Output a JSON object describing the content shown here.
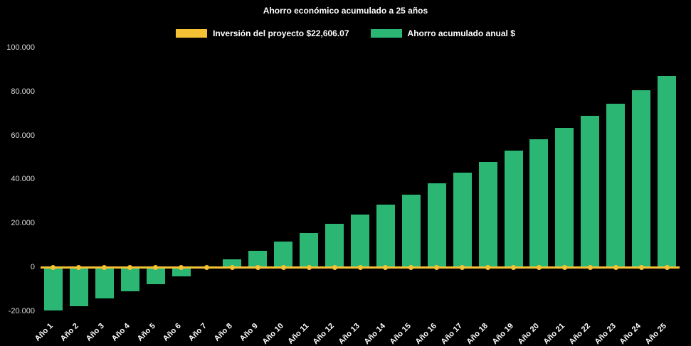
{
  "chart_data": {
    "type": "bar",
    "title": "Ahorro económico acumulado a 25 años",
    "categories": [
      "Año 1",
      "Año 2",
      "Año 3",
      "Año 4",
      "Año 5",
      "Año 6",
      "Año 7",
      "Año 8",
      "Año 9",
      "Año 10",
      "Año 11",
      "Año 12",
      "Año 13",
      "Año 14",
      "Año 15",
      "Año 16",
      "Año 17",
      "Año 18",
      "Año 19",
      "Año 20",
      "Año 21",
      "Año 22",
      "Año 23",
      "Año 24",
      "Año 25"
    ],
    "series": [
      {
        "name": "Inversión del proyecto $22,606.07",
        "type": "line",
        "color": "#F5C235",
        "values": [
          0,
          0,
          0,
          0,
          0,
          0,
          0,
          0,
          0,
          0,
          0,
          0,
          0,
          0,
          0,
          0,
          0,
          0,
          0,
          0,
          0,
          0,
          0,
          0,
          0
        ]
      },
      {
        "name": "Ahorro acumulado anual $",
        "type": "column",
        "color": "#2BB673",
        "values": [
          -19900,
          -17900,
          -14400,
          -11000,
          -7700,
          -4200,
          -700,
          3500,
          7500,
          11500,
          15600,
          19800,
          24100,
          28500,
          33000,
          38100,
          43100,
          47900,
          53100,
          58200,
          63400,
          68900,
          74400,
          80700,
          86900
        ]
      }
    ],
    "yticks": [
      {
        "value": 100000,
        "label": "100.000"
      },
      {
        "value": 80000,
        "label": "80.000"
      },
      {
        "value": 60000,
        "label": "60.000"
      },
      {
        "value": 40000,
        "label": "40.000"
      },
      {
        "value": 20000,
        "label": "20.000"
      },
      {
        "value": 0,
        "label": "0"
      },
      {
        "value": -20000,
        "label": "-20.000"
      }
    ],
    "ylim": [
      -22000,
      100000
    ],
    "xlabel": "",
    "ylabel": "",
    "grid": false,
    "legend_position": "top",
    "background": "#000000",
    "text_color": "#FFFFFF"
  }
}
